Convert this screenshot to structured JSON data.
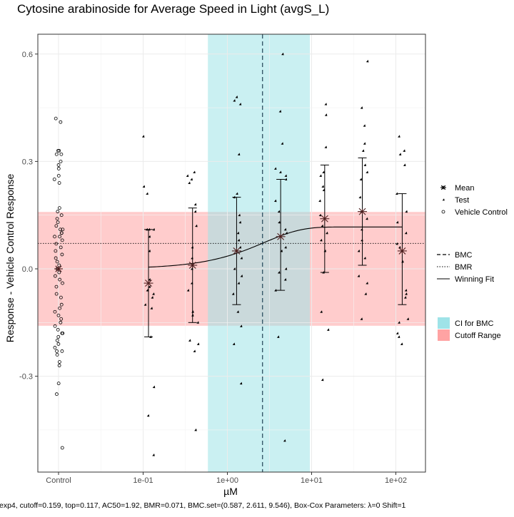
{
  "chart_data": {
    "type": "scatter",
    "title": "Cytosine arabinoside for Average Speed in Light (avgS_L)",
    "xlabel": "µM",
    "ylabel": "Response - Vehicle Control Response",
    "caption": "exp4, cutoff=0.159, top=0.117, AC50=1.92, BMR=0.071, BMC.set=(0.587, 2.611, 9.546), Box-Cox Parameters: λ=0 Shift=1",
    "x_scale": "log10 (control shown at left)",
    "x_ticks": [
      "Control",
      "1e-01",
      "1e+00",
      "1e+01",
      "1e+02"
    ],
    "y_ticks": [
      "-0.3",
      "0.0",
      "0.3",
      "0.6"
    ],
    "ylim": [
      -0.57,
      0.62
    ],
    "grid": true,
    "legend_placement": "right",
    "legend_groups": [
      [
        {
          "label": "Mean",
          "key": "mean"
        },
        {
          "label": "Test",
          "key": "test"
        },
        {
          "label": "Vehicle Control",
          "key": "vc"
        }
      ],
      [
        {
          "label": "BMC",
          "key": "bmc"
        },
        {
          "label": "BMR",
          "key": "bmr"
        },
        {
          "label": "Winning Fit",
          "key": "fit"
        }
      ],
      [
        {
          "label": "CI for BMC",
          "key": "ci"
        },
        {
          "label": "Cutoff Range",
          "key": "cutoff"
        }
      ]
    ],
    "colors": {
      "ci_fill": "#9fe3e8",
      "cutoff_fill": "#ffa3a3",
      "points": "#000000",
      "fit": "#000000",
      "mean": "#4d1f1f"
    },
    "cutoff": 0.159,
    "bmr": 0.071,
    "bmc": 2.611,
    "bmc_ci": [
      0.587,
      9.546
    ],
    "fit": {
      "model": "exp4",
      "top": 0.117,
      "ac50": 1.92
    },
    "vehicle_control": [
      0.42,
      0.41,
      0.33,
      0.33,
      0.32,
      0.32,
      0.3,
      0.29,
      0.28,
      0.26,
      0.25,
      0.24,
      0.17,
      0.16,
      0.15,
      0.14,
      0.13,
      0.12,
      0.11,
      0.11,
      0.1,
      0.1,
      0.09,
      0.09,
      0.08,
      0.07,
      0.06,
      0.05,
      0.04,
      0.03,
      0.02,
      0.01,
      0.0,
      0.0,
      -0.01,
      -0.02,
      -0.03,
      -0.04,
      -0.05,
      -0.07,
      -0.08,
      -0.1,
      -0.11,
      -0.12,
      -0.13,
      -0.14,
      -0.15,
      -0.16,
      -0.17,
      -0.18,
      -0.18,
      -0.19,
      -0.2,
      -0.21,
      -0.22,
      -0.23,
      -0.23,
      -0.24,
      -0.26,
      -0.27,
      -0.32,
      -0.35,
      -0.5
    ],
    "concentrations": [
      {
        "conc": 0.1158,
        "mean": -0.04,
        "ci": [
          -0.19,
          0.11
        ],
        "values": [
          0.37,
          0.23,
          0.21,
          0.11,
          0.11,
          0.11,
          0.09,
          0.05,
          -0.03,
          -0.05,
          -0.06,
          -0.07,
          -0.08,
          -0.1,
          -0.11,
          -0.19,
          -0.33,
          -0.41,
          -0.52
        ]
      },
      {
        "conc": 0.386,
        "mean": 0.01,
        "ci": [
          -0.15,
          0.17
        ],
        "values": [
          0.27,
          0.26,
          0.25,
          0.24,
          0.18,
          0.16,
          0.12,
          0.06,
          0.03,
          0.0,
          -0.04,
          -0.06,
          -0.12,
          -0.13,
          -0.15,
          -0.2,
          -0.21,
          -0.23,
          -0.45
        ]
      },
      {
        "conc": 1.287,
        "mean": 0.05,
        "ci": [
          -0.1,
          0.2
        ],
        "values": [
          0.48,
          0.47,
          0.46,
          0.32,
          0.21,
          0.2,
          0.15,
          0.13,
          0.1,
          0.08,
          0.06,
          0.03,
          0.0,
          -0.02,
          -0.04,
          -0.07,
          -0.12,
          -0.16,
          -0.21,
          -0.32
        ]
      },
      {
        "conc": 4.29,
        "mean": 0.09,
        "ci": [
          -0.06,
          0.25
        ],
        "values": [
          0.6,
          0.44,
          0.35,
          0.28,
          0.27,
          0.26,
          0.25,
          0.19,
          0.16,
          0.13,
          0.11,
          0.1,
          0.06,
          0.05,
          0.0,
          -0.01,
          -0.03,
          -0.06,
          -0.19,
          -0.48
        ]
      },
      {
        "conc": 14.3,
        "mean": 0.14,
        "ci": [
          -0.01,
          0.29
        ],
        "values": [
          0.46,
          0.43,
          0.34,
          0.27,
          0.26,
          0.23,
          0.22,
          0.19,
          0.15,
          0.12,
          0.1,
          0.08,
          0.05,
          -0.01,
          -0.12,
          -0.17,
          -0.31
        ]
      },
      {
        "conc": 40.0,
        "mean": 0.16,
        "ci": [
          0.01,
          0.31
        ],
        "values": [
          0.58,
          0.45,
          0.4,
          0.35,
          0.33,
          0.29,
          0.27,
          0.25,
          0.2,
          0.16,
          0.14,
          0.11,
          0.08,
          0.05,
          0.03,
          -0.02,
          -0.04,
          -0.07,
          -0.14
        ]
      },
      {
        "conc": 119.0,
        "mean": 0.05,
        "ci": [
          -0.1,
          0.21
        ],
        "values": [
          0.37,
          0.33,
          0.32,
          0.29,
          0.21,
          0.16,
          0.13,
          0.1,
          0.07,
          0.06,
          0.05,
          0.02,
          -0.06,
          -0.07,
          -0.08,
          -0.14,
          -0.15,
          -0.18,
          -0.19,
          -0.21
        ]
      }
    ]
  }
}
